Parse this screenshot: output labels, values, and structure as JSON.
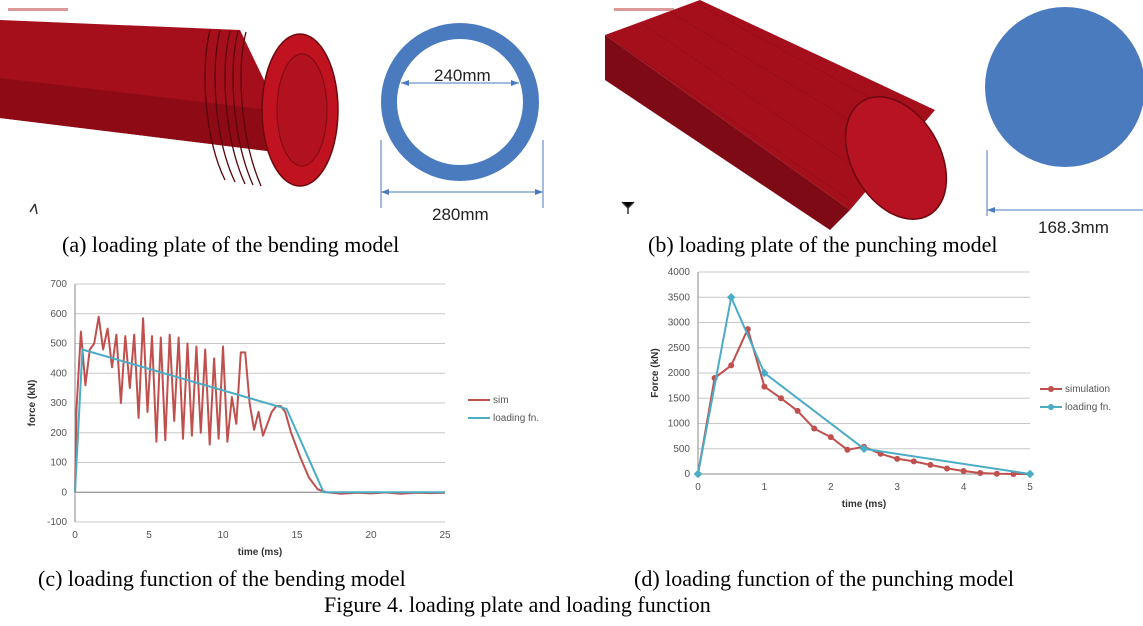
{
  "panels": {
    "a": {
      "caption": "(a) loading plate of the bending model",
      "inner_dim": "240mm",
      "outer_dim": "280mm",
      "ring_color": "#4a7bbf",
      "model_color": "#b0101e"
    },
    "b": {
      "caption": "(b) loading plate of the punching model",
      "diameter_dim": "168.3mm",
      "disk_color": "#4a7bbf",
      "model_color": "#b0101e"
    },
    "c": {
      "caption": "(c) loading function of the bending model"
    },
    "d": {
      "caption": "(d) loading function of the punching model"
    }
  },
  "figure_caption": "Figure 4. loading plate and loading function",
  "chart_data": [
    {
      "id": "c",
      "type": "line",
      "xlabel": "time (ms)",
      "ylabel": "force (kN)",
      "xlim": [
        0,
        25
      ],
      "ylim": [
        -100,
        700
      ],
      "x_ticks": [
        0,
        5,
        10,
        15,
        20,
        25
      ],
      "y_ticks": [
        -100,
        0,
        100,
        200,
        300,
        400,
        500,
        600,
        700
      ],
      "grid": true,
      "legend_position": "right",
      "series": [
        {
          "name": "sim",
          "color": "#c0504d",
          "markers": false,
          "points": [
            [
              0,
              0
            ],
            [
              0.1,
              280
            ],
            [
              0.4,
              540
            ],
            [
              0.7,
              360
            ],
            [
              1,
              480
            ],
            [
              1.3,
              500
            ],
            [
              1.6,
              590
            ],
            [
              1.9,
              480
            ],
            [
              2.2,
              550
            ],
            [
              2.5,
              420
            ],
            [
              2.8,
              530
            ],
            [
              3.1,
              300
            ],
            [
              3.4,
              525
            ],
            [
              3.7,
              350
            ],
            [
              4,
              530
            ],
            [
              4.3,
              250
            ],
            [
              4.6,
              585
            ],
            [
              4.9,
              270
            ],
            [
              5.2,
              525
            ],
            [
              5.5,
              170
            ],
            [
              5.8,
              520
            ],
            [
              6.1,
              175
            ],
            [
              6.4,
              530
            ],
            [
              6.7,
              240
            ],
            [
              7,
              520
            ],
            [
              7.3,
              180
            ],
            [
              7.6,
              500
            ],
            [
              7.9,
              190
            ],
            [
              8.2,
              490
            ],
            [
              8.5,
              200
            ],
            [
              8.8,
              480
            ],
            [
              9.1,
              160
            ],
            [
              9.4,
              450
            ],
            [
              9.7,
              180
            ],
            [
              10,
              490
            ],
            [
              10.3,
              170
            ],
            [
              10.6,
              320
            ],
            [
              10.9,
              230
            ],
            [
              11.2,
              470
            ],
            [
              11.5,
              470
            ],
            [
              11.8,
              300
            ],
            [
              12.1,
              210
            ],
            [
              12.4,
              270
            ],
            [
              12.7,
              190
            ],
            [
              13,
              230
            ],
            [
              13.3,
              270
            ],
            [
              13.6,
              290
            ],
            [
              13.9,
              290
            ],
            [
              14.2,
              270
            ],
            [
              14.6,
              200
            ],
            [
              15.2,
              120
            ],
            [
              15.8,
              50
            ],
            [
              16.4,
              10
            ],
            [
              17,
              0
            ],
            [
              18,
              -5
            ],
            [
              19,
              -2
            ],
            [
              20,
              -4
            ],
            [
              21,
              -1
            ],
            [
              22,
              -5
            ],
            [
              23,
              -2
            ],
            [
              24,
              -3
            ],
            [
              25,
              -2
            ]
          ]
        },
        {
          "name": "loading fn.",
          "color": "#4bacc6",
          "markers": false,
          "points": [
            [
              0,
              0
            ],
            [
              0.5,
              480
            ],
            [
              14.3,
              280
            ],
            [
              16.8,
              0
            ],
            [
              25,
              0
            ]
          ]
        }
      ]
    },
    {
      "id": "d",
      "type": "line",
      "xlabel": "time (ms)",
      "ylabel": "Force (kN)",
      "xlim": [
        0,
        5
      ],
      "ylim": [
        0,
        4000
      ],
      "x_ticks": [
        0,
        1,
        2,
        3,
        4,
        5
      ],
      "y_ticks": [
        0,
        500,
        1000,
        1500,
        2000,
        2500,
        3000,
        3500,
        4000
      ],
      "grid": true,
      "legend_position": "right",
      "series": [
        {
          "name": "simulation",
          "color": "#c0504d",
          "markers": true,
          "points": [
            [
              0,
              0
            ],
            [
              0.25,
              1900
            ],
            [
              0.5,
              2150
            ],
            [
              0.75,
              2870
            ],
            [
              1,
              1730
            ],
            [
              1.25,
              1500
            ],
            [
              1.5,
              1250
            ],
            [
              1.75,
              900
            ],
            [
              2,
              730
            ],
            [
              2.25,
              480
            ],
            [
              2.5,
              540
            ],
            [
              2.75,
              400
            ],
            [
              3,
              300
            ],
            [
              3.25,
              250
            ],
            [
              3.5,
              180
            ],
            [
              3.75,
              110
            ],
            [
              4,
              60
            ],
            [
              4.25,
              20
            ],
            [
              4.5,
              5
            ],
            [
              4.75,
              0
            ],
            [
              5,
              0
            ]
          ]
        },
        {
          "name": "loading fn.",
          "color": "#4bacc6",
          "markers": true,
          "points": [
            [
              0,
              0
            ],
            [
              0.5,
              3500
            ],
            [
              1,
              2000
            ],
            [
              2.5,
              500
            ],
            [
              5,
              0
            ]
          ]
        }
      ]
    }
  ]
}
